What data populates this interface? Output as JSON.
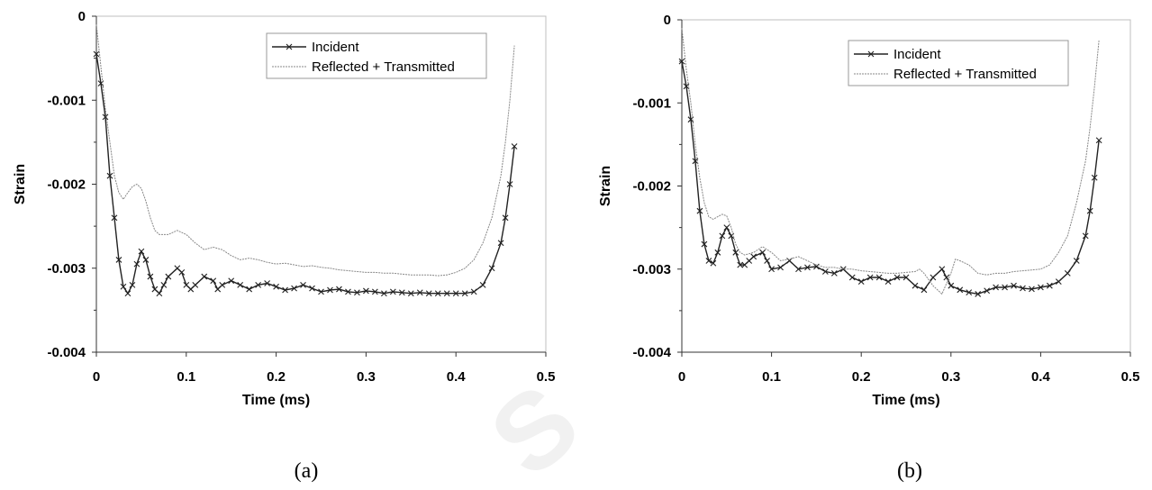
{
  "chart_data": [
    {
      "type": "line",
      "panel_label": "(a)",
      "xlabel": "Time (ms)",
      "ylabel": "Strain",
      "xlim": [
        0,
        0.5
      ],
      "ylim": [
        -0.004,
        0
      ],
      "x_ticks": [
        "0",
        "0.1",
        "0.2",
        "0.3",
        "0.4",
        "0.5"
      ],
      "y_ticks": [
        "0",
        "-0.001",
        "-0.002",
        "-0.003",
        "-0.004"
      ],
      "legend_position": "top-right",
      "series": [
        {
          "name": "Incident",
          "style": "solid-x-markers",
          "color": "#222222",
          "points": [
            [
              0,
              -0.00045
            ],
            [
              0.005,
              -0.0008
            ],
            [
              0.01,
              -0.0012
            ],
            [
              0.015,
              -0.0019
            ],
            [
              0.02,
              -0.0024
            ],
            [
              0.025,
              -0.0029
            ],
            [
              0.03,
              -0.00322
            ],
            [
              0.035,
              -0.0033
            ],
            [
              0.04,
              -0.0032
            ],
            [
              0.045,
              -0.00295
            ],
            [
              0.05,
              -0.0028
            ],
            [
              0.055,
              -0.0029
            ],
            [
              0.06,
              -0.0031
            ],
            [
              0.065,
              -0.00325
            ],
            [
              0.07,
              -0.0033
            ],
            [
              0.075,
              -0.0032
            ],
            [
              0.08,
              -0.0031
            ],
            [
              0.09,
              -0.003
            ],
            [
              0.095,
              -0.00305
            ],
            [
              0.1,
              -0.0032
            ],
            [
              0.105,
              -0.00325
            ],
            [
              0.11,
              -0.0032
            ],
            [
              0.12,
              -0.0031
            ],
            [
              0.13,
              -0.00315
            ],
            [
              0.135,
              -0.00325
            ],
            [
              0.14,
              -0.0032
            ],
            [
              0.15,
              -0.00315
            ],
            [
              0.16,
              -0.0032
            ],
            [
              0.17,
              -0.00325
            ],
            [
              0.18,
              -0.0032
            ],
            [
              0.19,
              -0.00318
            ],
            [
              0.2,
              -0.00322
            ],
            [
              0.21,
              -0.00326
            ],
            [
              0.22,
              -0.00324
            ],
            [
              0.23,
              -0.0032
            ],
            [
              0.24,
              -0.00324
            ],
            [
              0.25,
              -0.00328
            ],
            [
              0.26,
              -0.00326
            ],
            [
              0.27,
              -0.00325
            ],
            [
              0.28,
              -0.00328
            ],
            [
              0.29,
              -0.00329
            ],
            [
              0.3,
              -0.00327
            ],
            [
              0.31,
              -0.00328
            ],
            [
              0.32,
              -0.0033
            ],
            [
              0.33,
              -0.00328
            ],
            [
              0.34,
              -0.00329
            ],
            [
              0.35,
              -0.0033
            ],
            [
              0.36,
              -0.00329
            ],
            [
              0.37,
              -0.0033
            ],
            [
              0.38,
              -0.0033
            ],
            [
              0.39,
              -0.0033
            ],
            [
              0.4,
              -0.0033
            ],
            [
              0.41,
              -0.0033
            ],
            [
              0.42,
              -0.00328
            ],
            [
              0.43,
              -0.0032
            ],
            [
              0.44,
              -0.003
            ],
            [
              0.45,
              -0.0027
            ],
            [
              0.455,
              -0.0024
            ],
            [
              0.46,
              -0.002
            ],
            [
              0.465,
              -0.00155
            ]
          ]
        },
        {
          "name": "Reflected + Transmitted",
          "style": "thin-dotted",
          "color": "#888888",
          "points": [
            [
              0,
              -0.0001
            ],
            [
              0.005,
              -0.0006
            ],
            [
              0.01,
              -0.0011
            ],
            [
              0.015,
              -0.0015
            ],
            [
              0.02,
              -0.0019
            ],
            [
              0.025,
              -0.0021
            ],
            [
              0.03,
              -0.00218
            ],
            [
              0.035,
              -0.0021
            ],
            [
              0.04,
              -0.00203
            ],
            [
              0.045,
              -0.002
            ],
            [
              0.05,
              -0.00205
            ],
            [
              0.055,
              -0.0022
            ],
            [
              0.06,
              -0.0024
            ],
            [
              0.065,
              -0.00255
            ],
            [
              0.07,
              -0.0026
            ],
            [
              0.08,
              -0.0026
            ],
            [
              0.09,
              -0.00255
            ],
            [
              0.1,
              -0.0026
            ],
            [
              0.11,
              -0.0027
            ],
            [
              0.12,
              -0.00278
            ],
            [
              0.13,
              -0.00275
            ],
            [
              0.14,
              -0.00278
            ],
            [
              0.15,
              -0.00285
            ],
            [
              0.16,
              -0.0029
            ],
            [
              0.17,
              -0.00288
            ],
            [
              0.18,
              -0.0029
            ],
            [
              0.19,
              -0.00293
            ],
            [
              0.2,
              -0.00295
            ],
            [
              0.21,
              -0.00294
            ],
            [
              0.22,
              -0.00296
            ],
            [
              0.23,
              -0.00298
            ],
            [
              0.24,
              -0.00297
            ],
            [
              0.25,
              -0.00299
            ],
            [
              0.26,
              -0.003
            ],
            [
              0.27,
              -0.00302
            ],
            [
              0.28,
              -0.00303
            ],
            [
              0.29,
              -0.00304
            ],
            [
              0.3,
              -0.00305
            ],
            [
              0.31,
              -0.00305
            ],
            [
              0.32,
              -0.00306
            ],
            [
              0.33,
              -0.00306
            ],
            [
              0.34,
              -0.00307
            ],
            [
              0.35,
              -0.00308
            ],
            [
              0.36,
              -0.00308
            ],
            [
              0.37,
              -0.00308
            ],
            [
              0.38,
              -0.00309
            ],
            [
              0.39,
              -0.00308
            ],
            [
              0.4,
              -0.00305
            ],
            [
              0.41,
              -0.003
            ],
            [
              0.42,
              -0.0029
            ],
            [
              0.43,
              -0.0027
            ],
            [
              0.44,
              -0.0024
            ],
            [
              0.45,
              -0.0019
            ],
            [
              0.455,
              -0.0015
            ],
            [
              0.46,
              -0.001
            ],
            [
              0.465,
              -0.00035
            ]
          ]
        }
      ]
    },
    {
      "type": "line",
      "panel_label": "(b)",
      "xlabel": "Time (ms)",
      "ylabel": "Strain",
      "xlim": [
        0,
        0.5
      ],
      "ylim": [
        -0.004,
        0
      ],
      "x_ticks": [
        "0",
        "0.1",
        "0.2",
        "0.3",
        "0.4",
        "0.5"
      ],
      "y_ticks": [
        "0",
        "-0.001",
        "-0.002",
        "-0.003",
        "-0.004"
      ],
      "legend_position": "top-right",
      "series": [
        {
          "name": "Incident",
          "style": "solid-x-markers",
          "color": "#222222",
          "points": [
            [
              0,
              -0.0005
            ],
            [
              0.005,
              -0.0008
            ],
            [
              0.01,
              -0.0012
            ],
            [
              0.015,
              -0.0017
            ],
            [
              0.02,
              -0.0023
            ],
            [
              0.025,
              -0.0027
            ],
            [
              0.03,
              -0.0029
            ],
            [
              0.035,
              -0.00293
            ],
            [
              0.04,
              -0.0028
            ],
            [
              0.045,
              -0.0026
            ],
            [
              0.05,
              -0.0025
            ],
            [
              0.055,
              -0.0026
            ],
            [
              0.06,
              -0.0028
            ],
            [
              0.065,
              -0.00295
            ],
            [
              0.07,
              -0.00295
            ],
            [
              0.075,
              -0.0029
            ],
            [
              0.08,
              -0.00285
            ],
            [
              0.09,
              -0.0028
            ],
            [
              0.095,
              -0.0029
            ],
            [
              0.1,
              -0.003
            ],
            [
              0.11,
              -0.00298
            ],
            [
              0.12,
              -0.0029
            ],
            [
              0.13,
              -0.003
            ],
            [
              0.14,
              -0.00298
            ],
            [
              0.15,
              -0.00297
            ],
            [
              0.16,
              -0.00303
            ],
            [
              0.17,
              -0.00305
            ],
            [
              0.18,
              -0.003
            ],
            [
              0.19,
              -0.0031
            ],
            [
              0.2,
              -0.00315
            ],
            [
              0.21,
              -0.0031
            ],
            [
              0.22,
              -0.0031
            ],
            [
              0.23,
              -0.00315
            ],
            [
              0.24,
              -0.0031
            ],
            [
              0.25,
              -0.0031
            ],
            [
              0.26,
              -0.0032
            ],
            [
              0.27,
              -0.00325
            ],
            [
              0.28,
              -0.0031
            ],
            [
              0.29,
              -0.003
            ],
            [
              0.295,
              -0.0031
            ],
            [
              0.3,
              -0.0032
            ],
            [
              0.31,
              -0.00325
            ],
            [
              0.32,
              -0.00328
            ],
            [
              0.33,
              -0.0033
            ],
            [
              0.34,
              -0.00326
            ],
            [
              0.35,
              -0.00322
            ],
            [
              0.36,
              -0.00322
            ],
            [
              0.37,
              -0.0032
            ],
            [
              0.38,
              -0.00323
            ],
            [
              0.39,
              -0.00324
            ],
            [
              0.4,
              -0.00322
            ],
            [
              0.41,
              -0.0032
            ],
            [
              0.42,
              -0.00315
            ],
            [
              0.43,
              -0.00305
            ],
            [
              0.44,
              -0.0029
            ],
            [
              0.45,
              -0.0026
            ],
            [
              0.455,
              -0.0023
            ],
            [
              0.46,
              -0.0019
            ],
            [
              0.465,
              -0.00145
            ]
          ]
        },
        {
          "name": "Reflected + Transmitted",
          "style": "thin-dotted",
          "color": "#888888",
          "points": [
            [
              0,
              -0.0001
            ],
            [
              0.005,
              -0.0006
            ],
            [
              0.01,
              -0.001
            ],
            [
              0.015,
              -0.0015
            ],
            [
              0.02,
              -0.0019
            ],
            [
              0.025,
              -0.0022
            ],
            [
              0.03,
              -0.00237
            ],
            [
              0.035,
              -0.0024
            ],
            [
              0.04,
              -0.00237
            ],
            [
              0.045,
              -0.00234
            ],
            [
              0.05,
              -0.00236
            ],
            [
              0.055,
              -0.0025
            ],
            [
              0.06,
              -0.0027
            ],
            [
              0.065,
              -0.0028
            ],
            [
              0.07,
              -0.00283
            ],
            [
              0.08,
              -0.0028
            ],
            [
              0.09,
              -0.00273
            ],
            [
              0.1,
              -0.0028
            ],
            [
              0.11,
              -0.0029
            ],
            [
              0.12,
              -0.00288
            ],
            [
              0.13,
              -0.00285
            ],
            [
              0.14,
              -0.0029
            ],
            [
              0.15,
              -0.00295
            ],
            [
              0.16,
              -0.00298
            ],
            [
              0.17,
              -0.00298
            ],
            [
              0.18,
              -0.003
            ],
            [
              0.19,
              -0.003
            ],
            [
              0.2,
              -0.00302
            ],
            [
              0.21,
              -0.00303
            ],
            [
              0.22,
              -0.00304
            ],
            [
              0.23,
              -0.00305
            ],
            [
              0.24,
              -0.00305
            ],
            [
              0.25,
              -0.00304
            ],
            [
              0.26,
              -0.00303
            ],
            [
              0.265,
              -0.003
            ],
            [
              0.27,
              -0.00305
            ],
            [
              0.28,
              -0.0032
            ],
            [
              0.29,
              -0.0033
            ],
            [
              0.3,
              -0.00305
            ],
            [
              0.305,
              -0.00288
            ],
            [
              0.31,
              -0.0029
            ],
            [
              0.32,
              -0.00295
            ],
            [
              0.33,
              -0.00305
            ],
            [
              0.34,
              -0.00307
            ],
            [
              0.35,
              -0.00305
            ],
            [
              0.36,
              -0.00305
            ],
            [
              0.37,
              -0.00303
            ],
            [
              0.38,
              -0.00302
            ],
            [
              0.39,
              -0.00301
            ],
            [
              0.4,
              -0.003
            ],
            [
              0.41,
              -0.00295
            ],
            [
              0.42,
              -0.0028
            ],
            [
              0.43,
              -0.0026
            ],
            [
              0.44,
              -0.0022
            ],
            [
              0.45,
              -0.0017
            ],
            [
              0.455,
              -0.0013
            ],
            [
              0.46,
              -0.0008
            ],
            [
              0.465,
              -0.00025
            ]
          ]
        }
      ]
    }
  ]
}
